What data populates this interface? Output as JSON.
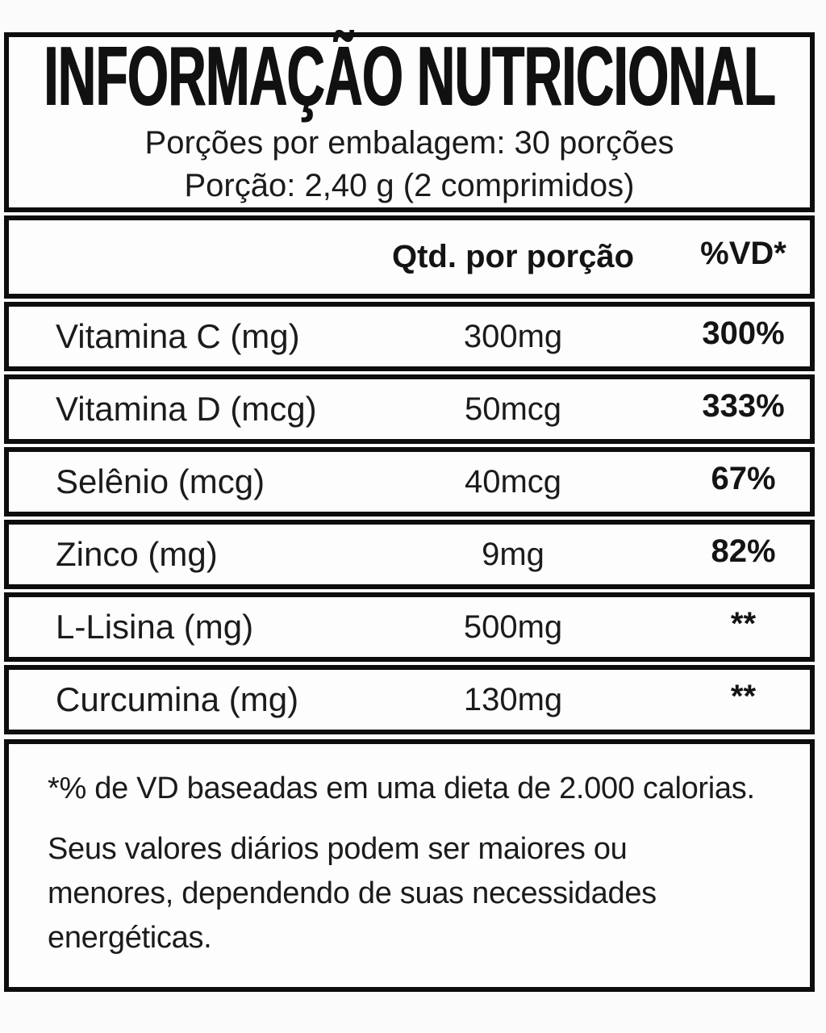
{
  "label": {
    "title": "INFORMAÇÃO NUTRICIONAL",
    "header_lines": {
      "servings_per_package": "Porções por embalagem: 30 porções",
      "serving_size": "Porção: 2,40 g (2 comprimidos)"
    },
    "table": {
      "columns": {
        "quantity_header": "Qtd. por porção",
        "daily_value_header": "%VD*"
      },
      "rows": [
        {
          "name": "Vitamina C (mg)",
          "quantity": "300mg",
          "daily_value": "300%"
        },
        {
          "name": "Vitamina D (mcg)",
          "quantity": "50mcg",
          "daily_value": "333%"
        },
        {
          "name": "Selênio (mcg)",
          "quantity": "40mcg",
          "daily_value": "67%"
        },
        {
          "name": "Zinco (mg)",
          "quantity": "9mg",
          "daily_value": "82%"
        },
        {
          "name": "L-Lisina (mg)",
          "quantity": "500mg",
          "daily_value": "**"
        },
        {
          "name": "Curcumina (mg)",
          "quantity": "130mg",
          "daily_value": "**"
        }
      ]
    },
    "footnote": {
      "lines": [
        "*% de VD baseadas em uma dieta de 2.000 calorias.",
        "Seus valores diários podem ser maiores ou",
        "menores, dependendo de suas necessidades",
        "energéticas."
      ]
    },
    "colors": {
      "border": "#0d0d0d",
      "text": "#181818",
      "box_background": "#fdfdfd",
      "page_background": "#fbfbfb"
    }
  }
}
